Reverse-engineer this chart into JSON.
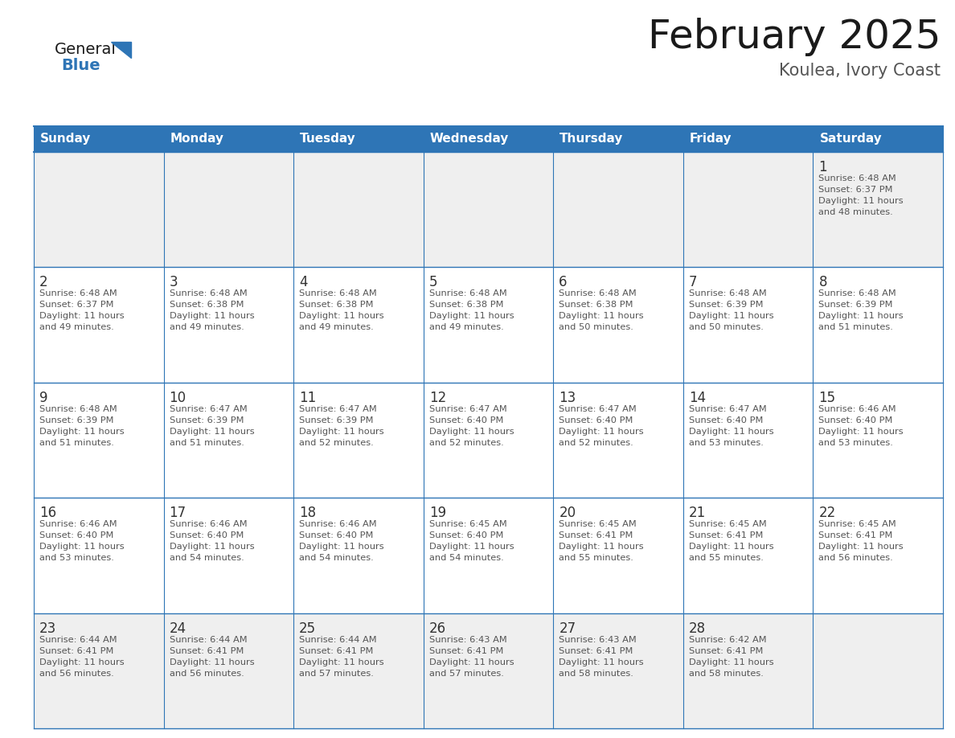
{
  "title": "February 2025",
  "subtitle": "Koulea, Ivory Coast",
  "days_of_week": [
    "Sunday",
    "Monday",
    "Tuesday",
    "Wednesday",
    "Thursday",
    "Friday",
    "Saturday"
  ],
  "header_bg_color": "#2E75B6",
  "header_text_color": "#FFFFFF",
  "cell_bg_white": "#FFFFFF",
  "cell_bg_gray": "#EEEEEE",
  "border_color": "#2E75B6",
  "day_number_color": "#333333",
  "info_text_color": "#555555",
  "title_color": "#1a1a1a",
  "subtitle_color": "#555555",
  "logo_general_color": "#1a1a1a",
  "logo_blue_color": "#2E75B6",
  "row_bg_colors": [
    "#EFEFEF",
    "#FFFFFF",
    "#FFFFFF",
    "#FFFFFF",
    "#EFEFEF"
  ],
  "weeks": [
    {
      "days": [
        {
          "date": null,
          "info": null
        },
        {
          "date": null,
          "info": null
        },
        {
          "date": null,
          "info": null
        },
        {
          "date": null,
          "info": null
        },
        {
          "date": null,
          "info": null
        },
        {
          "date": null,
          "info": null
        },
        {
          "date": 1,
          "info": "Sunrise: 6:48 AM\nSunset: 6:37 PM\nDaylight: 11 hours\nand 48 minutes."
        }
      ]
    },
    {
      "days": [
        {
          "date": 2,
          "info": "Sunrise: 6:48 AM\nSunset: 6:37 PM\nDaylight: 11 hours\nand 49 minutes."
        },
        {
          "date": 3,
          "info": "Sunrise: 6:48 AM\nSunset: 6:38 PM\nDaylight: 11 hours\nand 49 minutes."
        },
        {
          "date": 4,
          "info": "Sunrise: 6:48 AM\nSunset: 6:38 PM\nDaylight: 11 hours\nand 49 minutes."
        },
        {
          "date": 5,
          "info": "Sunrise: 6:48 AM\nSunset: 6:38 PM\nDaylight: 11 hours\nand 49 minutes."
        },
        {
          "date": 6,
          "info": "Sunrise: 6:48 AM\nSunset: 6:38 PM\nDaylight: 11 hours\nand 50 minutes."
        },
        {
          "date": 7,
          "info": "Sunrise: 6:48 AM\nSunset: 6:39 PM\nDaylight: 11 hours\nand 50 minutes."
        },
        {
          "date": 8,
          "info": "Sunrise: 6:48 AM\nSunset: 6:39 PM\nDaylight: 11 hours\nand 51 minutes."
        }
      ]
    },
    {
      "days": [
        {
          "date": 9,
          "info": "Sunrise: 6:48 AM\nSunset: 6:39 PM\nDaylight: 11 hours\nand 51 minutes."
        },
        {
          "date": 10,
          "info": "Sunrise: 6:47 AM\nSunset: 6:39 PM\nDaylight: 11 hours\nand 51 minutes."
        },
        {
          "date": 11,
          "info": "Sunrise: 6:47 AM\nSunset: 6:39 PM\nDaylight: 11 hours\nand 52 minutes."
        },
        {
          "date": 12,
          "info": "Sunrise: 6:47 AM\nSunset: 6:40 PM\nDaylight: 11 hours\nand 52 minutes."
        },
        {
          "date": 13,
          "info": "Sunrise: 6:47 AM\nSunset: 6:40 PM\nDaylight: 11 hours\nand 52 minutes."
        },
        {
          "date": 14,
          "info": "Sunrise: 6:47 AM\nSunset: 6:40 PM\nDaylight: 11 hours\nand 53 minutes."
        },
        {
          "date": 15,
          "info": "Sunrise: 6:46 AM\nSunset: 6:40 PM\nDaylight: 11 hours\nand 53 minutes."
        }
      ]
    },
    {
      "days": [
        {
          "date": 16,
          "info": "Sunrise: 6:46 AM\nSunset: 6:40 PM\nDaylight: 11 hours\nand 53 minutes."
        },
        {
          "date": 17,
          "info": "Sunrise: 6:46 AM\nSunset: 6:40 PM\nDaylight: 11 hours\nand 54 minutes."
        },
        {
          "date": 18,
          "info": "Sunrise: 6:46 AM\nSunset: 6:40 PM\nDaylight: 11 hours\nand 54 minutes."
        },
        {
          "date": 19,
          "info": "Sunrise: 6:45 AM\nSunset: 6:40 PM\nDaylight: 11 hours\nand 54 minutes."
        },
        {
          "date": 20,
          "info": "Sunrise: 6:45 AM\nSunset: 6:41 PM\nDaylight: 11 hours\nand 55 minutes."
        },
        {
          "date": 21,
          "info": "Sunrise: 6:45 AM\nSunset: 6:41 PM\nDaylight: 11 hours\nand 55 minutes."
        },
        {
          "date": 22,
          "info": "Sunrise: 6:45 AM\nSunset: 6:41 PM\nDaylight: 11 hours\nand 56 minutes."
        }
      ]
    },
    {
      "days": [
        {
          "date": 23,
          "info": "Sunrise: 6:44 AM\nSunset: 6:41 PM\nDaylight: 11 hours\nand 56 minutes."
        },
        {
          "date": 24,
          "info": "Sunrise: 6:44 AM\nSunset: 6:41 PM\nDaylight: 11 hours\nand 56 minutes."
        },
        {
          "date": 25,
          "info": "Sunrise: 6:44 AM\nSunset: 6:41 PM\nDaylight: 11 hours\nand 57 minutes."
        },
        {
          "date": 26,
          "info": "Sunrise: 6:43 AM\nSunset: 6:41 PM\nDaylight: 11 hours\nand 57 minutes."
        },
        {
          "date": 27,
          "info": "Sunrise: 6:43 AM\nSunset: 6:41 PM\nDaylight: 11 hours\nand 58 minutes."
        },
        {
          "date": 28,
          "info": "Sunrise: 6:42 AM\nSunset: 6:41 PM\nDaylight: 11 hours\nand 58 minutes."
        },
        {
          "date": null,
          "info": null
        }
      ]
    }
  ]
}
